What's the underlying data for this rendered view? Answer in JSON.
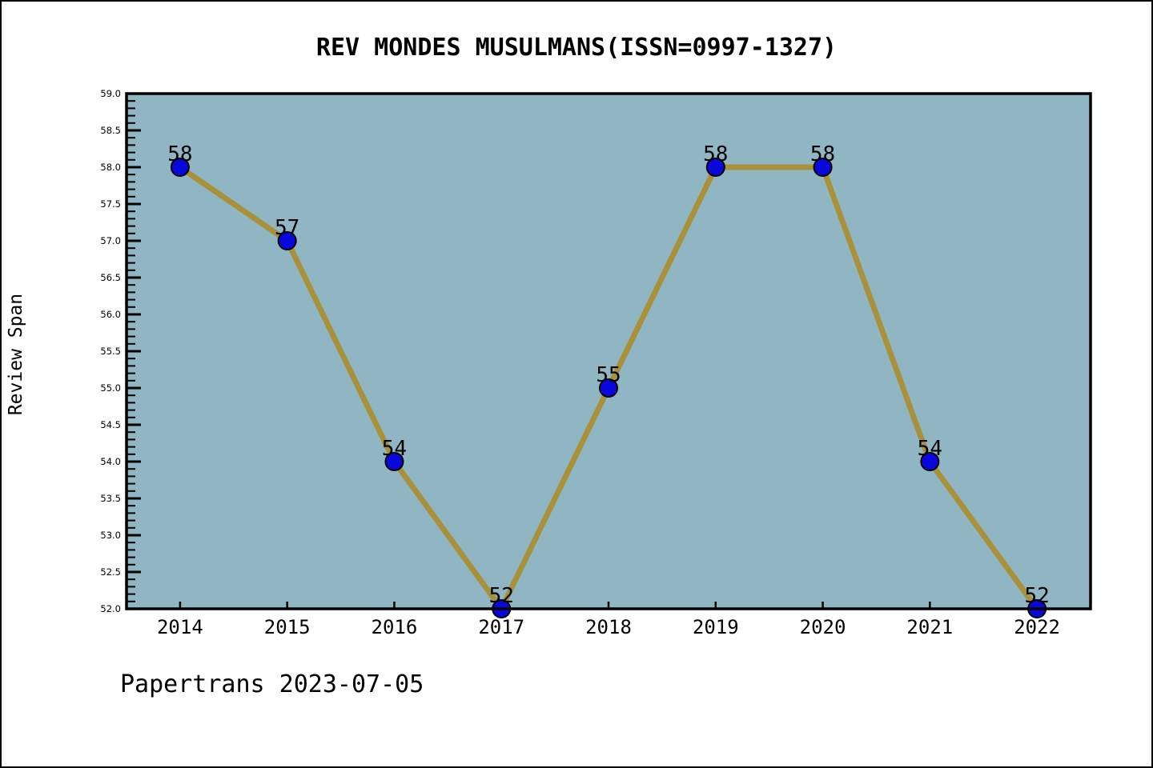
{
  "title": "REV MONDES MUSULMANS(ISSN=0997-1327)",
  "footer": "Papertrans 2023-07-05",
  "chart_data": {
    "type": "line",
    "title": "REV MONDES MUSULMANS(ISSN=0997-1327)",
    "categories": [
      2014,
      2015,
      2016,
      2017,
      2018,
      2019,
      2020,
      2021,
      2022
    ],
    "values": [
      58,
      57,
      54,
      52,
      55,
      58,
      58,
      54,
      52
    ],
    "point_labels": [
      "58",
      "57",
      "54",
      "52",
      "55",
      "58",
      "58",
      "54",
      "52"
    ],
    "xlabel": "",
    "ylabel": "Review Span",
    "ylim": [
      52.0,
      59.0
    ],
    "xlim": [
      2013.5,
      2022.5
    ],
    "ytick_major_step": 0.5,
    "ytick_minor_step": 0.1,
    "ytick_decimals": 1,
    "grid": false,
    "legend": null
  },
  "colors": {
    "figure_bg": "#ffffff",
    "plot_bg": "#90b6c3",
    "line": "#a8913a",
    "marker_fill": "#0808dd",
    "marker_edge": "#000000",
    "axis": "#000000",
    "text": "#000000"
  }
}
